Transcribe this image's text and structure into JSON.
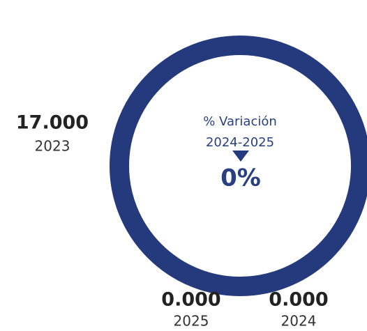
{
  "stats": [
    {
      "value": "17.000",
      "year": "2023"
    },
    {
      "value": "0.000",
      "year": "2025"
    },
    {
      "value": "0.000",
      "year": "2024"
    }
  ],
  "center": {
    "label": "% Variación",
    "period": "2024-2025",
    "change": "0%"
  }
}
